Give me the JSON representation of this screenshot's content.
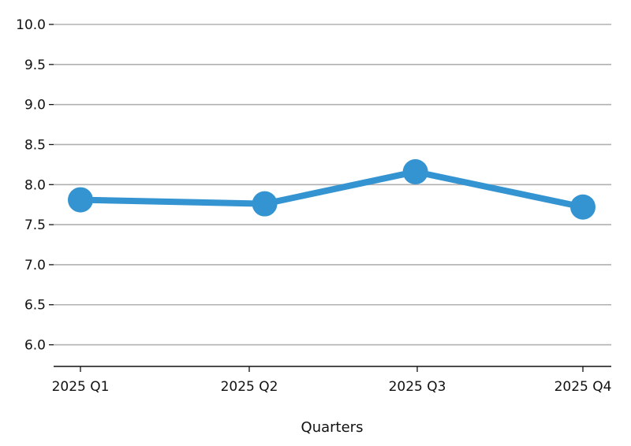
{
  "chart_data": {
    "type": "line",
    "title": "",
    "xlabel": "Quarters",
    "ylabel": "",
    "categories": [
      "2025 Q1",
      "2025 Q2",
      "2025 Q3",
      "2025 Q4"
    ],
    "x": [
      0,
      1.1,
      2.0,
      3.0
    ],
    "series": [
      {
        "values": [
          7.81,
          7.76,
          8.16,
          7.72
        ],
        "color": "#3494d1"
      }
    ],
    "ylim": [
      5.73,
      10.0
    ],
    "yticks": [
      6.0,
      6.5,
      7.0,
      7.5,
      8.0,
      8.5,
      9.0,
      9.5,
      10.0
    ],
    "ytick_labels": [
      "6.0",
      "6.5",
      "7.0",
      "7.5",
      "8.0",
      "8.5",
      "9.0",
      "9.5",
      "10.0"
    ],
    "xticks": [
      0,
      1,
      2,
      3
    ],
    "grid": {
      "y": true,
      "color": "#b0b0b0"
    },
    "legend": "none"
  }
}
